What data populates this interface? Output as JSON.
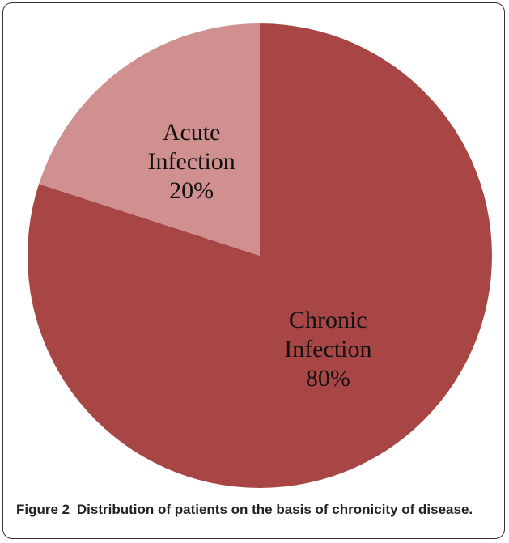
{
  "chart_data": {
    "type": "pie",
    "categories": [
      "Chronic Infection",
      "Acute Infection"
    ],
    "values": [
      80,
      20
    ],
    "value_labels": [
      "80%",
      "20%"
    ],
    "colors": [
      "#a84646",
      "#d09090"
    ],
    "start_angle": 0,
    "direction": "clockwise"
  },
  "caption": {
    "label": "Figure 2",
    "text": "Distribution of patients on the basis of chronicity of disease."
  }
}
